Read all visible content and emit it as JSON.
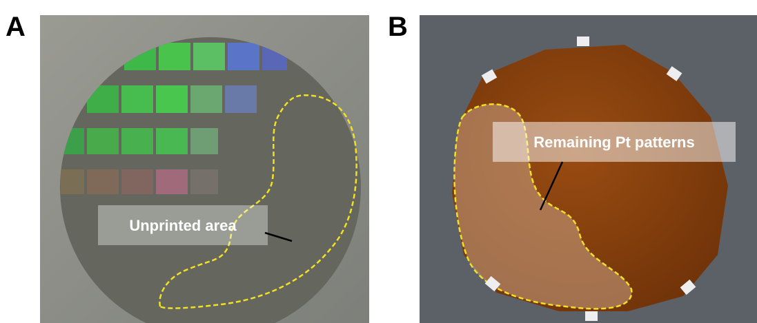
{
  "panels": [
    {
      "label": "A",
      "annotation": "Unprinted area"
    },
    {
      "label": "B",
      "annotation": "Remaining Pt patterns"
    }
  ]
}
